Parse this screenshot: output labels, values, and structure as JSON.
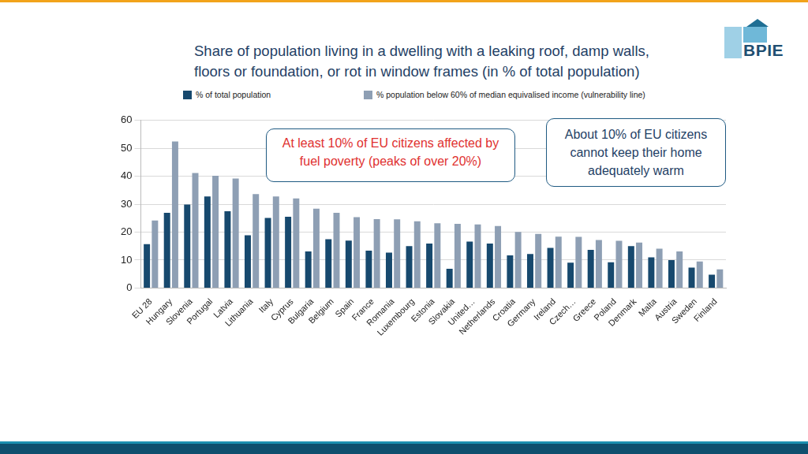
{
  "chart_data": {
    "type": "bar",
    "title": "Share of population living in a dwelling with a leaking roof, damp walls, floors or foundation, or rot in window frames (in % of total population)",
    "logo": "BPIE",
    "annotations": [
      "At least 10% of EU citizens affected by fuel poverty (peaks of over 20%)",
      "About 10% of EU citizens cannot keep their home adequately warm"
    ],
    "categories": [
      "EU 28",
      "Hungary",
      "Slovenia",
      "Portugal",
      "Latvia",
      "Lithuania",
      "Italy",
      "Cyprus",
      "Bulgaria",
      "Belgium",
      "Spain",
      "France",
      "Romania",
      "Luxembourg",
      "Estonia",
      "Slovakia",
      "United…",
      "Netherlands",
      "Croatia",
      "Germany",
      "Ireland",
      "Czech…",
      "Greece",
      "Poland",
      "Denmark",
      "Malta",
      "Austria",
      "Sweden",
      "Finland"
    ],
    "series": [
      {
        "name": "% of total population",
        "color": "#17496e",
        "values": [
          15.7,
          26.9,
          29.9,
          32.8,
          27.5,
          18.9,
          25.1,
          25.5,
          13.1,
          17.5,
          17.0,
          13.4,
          12.7,
          15.0,
          15.9,
          6.9,
          16.6,
          15.9,
          11.7,
          12.2,
          14.4,
          9.1,
          13.7,
          9.2,
          15.0,
          11.0,
          10.0,
          7.3,
          4.8
        ]
      },
      {
        "name": "% population below  60% of median equivalised income (vulnerability line)",
        "color": "#8e9fb4",
        "values": [
          24.2,
          52.5,
          41.2,
          40.2,
          39.2,
          33.6,
          32.8,
          32.1,
          28.4,
          26.9,
          25.4,
          24.7,
          24.6,
          23.9,
          23.2,
          23.0,
          22.8,
          22.2,
          20.1,
          19.4,
          18.4,
          18.3,
          17.2,
          16.9,
          16.3,
          14.1,
          13.1,
          9.5,
          6.7
        ]
      }
    ],
    "ylim": [
      0,
      60
    ],
    "yticks": [
      0,
      10,
      20,
      30,
      40,
      50,
      60
    ],
    "grid": true,
    "legend": "top"
  }
}
